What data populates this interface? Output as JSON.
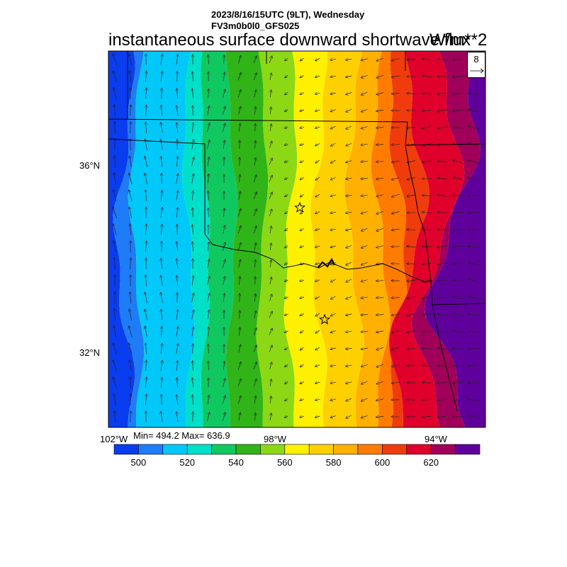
{
  "header": {
    "line1": "2023/8/16/15UTC (9LT), Wednesday",
    "line2": "FV3m0b0l0_GFS025"
  },
  "title": "instantaneous surface downward shortwave flux",
  "units": "W/m**2",
  "stats": "Min= 494.2 Max= 636.9",
  "vector_reference": {
    "value": "8"
  },
  "axes": {
    "lat_labels": [
      "36°N",
      "32°N"
    ],
    "lon_labels": [
      "102°W",
      "98°W",
      "94°W"
    ]
  },
  "colorbar": {
    "labels": [
      "500",
      "520",
      "540",
      "560",
      "580",
      "600",
      "620"
    ],
    "colors": [
      "#0a3cf0",
      "#1e7cf8",
      "#00c8f8",
      "#00e0c8",
      "#10c860",
      "#30b418",
      "#8cd814",
      "#fff000",
      "#ffd000",
      "#ffb000",
      "#ff7c00",
      "#f03c0c",
      "#e0002c",
      "#a0005a",
      "#60009c"
    ]
  },
  "map_features": {
    "stars": [
      "station-star",
      "station-star"
    ]
  }
}
